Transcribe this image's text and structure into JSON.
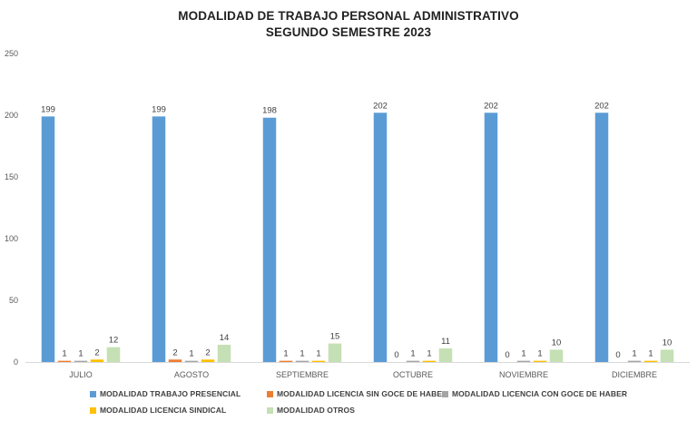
{
  "chart_data": {
    "type": "bar",
    "title_line1": "MODALIDAD DE TRABAJO PERSONAL ADMINISTRATIVO",
    "title_line2": "SEGUNDO SEMESTRE 2023",
    "categories": [
      "JULIO",
      "AGOSTO",
      "SEPTIEMBRE",
      "OCTUBRE",
      "NOVIEMBRE",
      "DICIEMBRE"
    ],
    "ylim": [
      0,
      250
    ],
    "yticks": [
      0,
      50,
      100,
      150,
      200,
      250
    ],
    "grid": false,
    "legend_position": "bottom",
    "series": [
      {
        "name": "MODALIDAD TRABAJO PRESENCIAL",
        "color": "#5B9BD5",
        "values": [
          199,
          199,
          198,
          202,
          202,
          202
        ]
      },
      {
        "name": "MODALIDAD LICENCIA SIN GOCE DE HABER",
        "color": "#ED7D31",
        "values": [
          1,
          2,
          1,
          0,
          0,
          0
        ]
      },
      {
        "name": "MODALIDAD LICENCIA CON GOCE DE HABER",
        "color": "#A5A5A5",
        "values": [
          1,
          1,
          1,
          1,
          1,
          1
        ]
      },
      {
        "name": "MODALIDAD LICENCIA SINDICAL",
        "color": "#FFC000",
        "values": [
          2,
          2,
          1,
          1,
          1,
          1
        ]
      },
      {
        "name": "MODALIDAD OTROS",
        "color": "#C5E0B4",
        "values": [
          12,
          14,
          15,
          11,
          10,
          10
        ]
      }
    ]
  }
}
